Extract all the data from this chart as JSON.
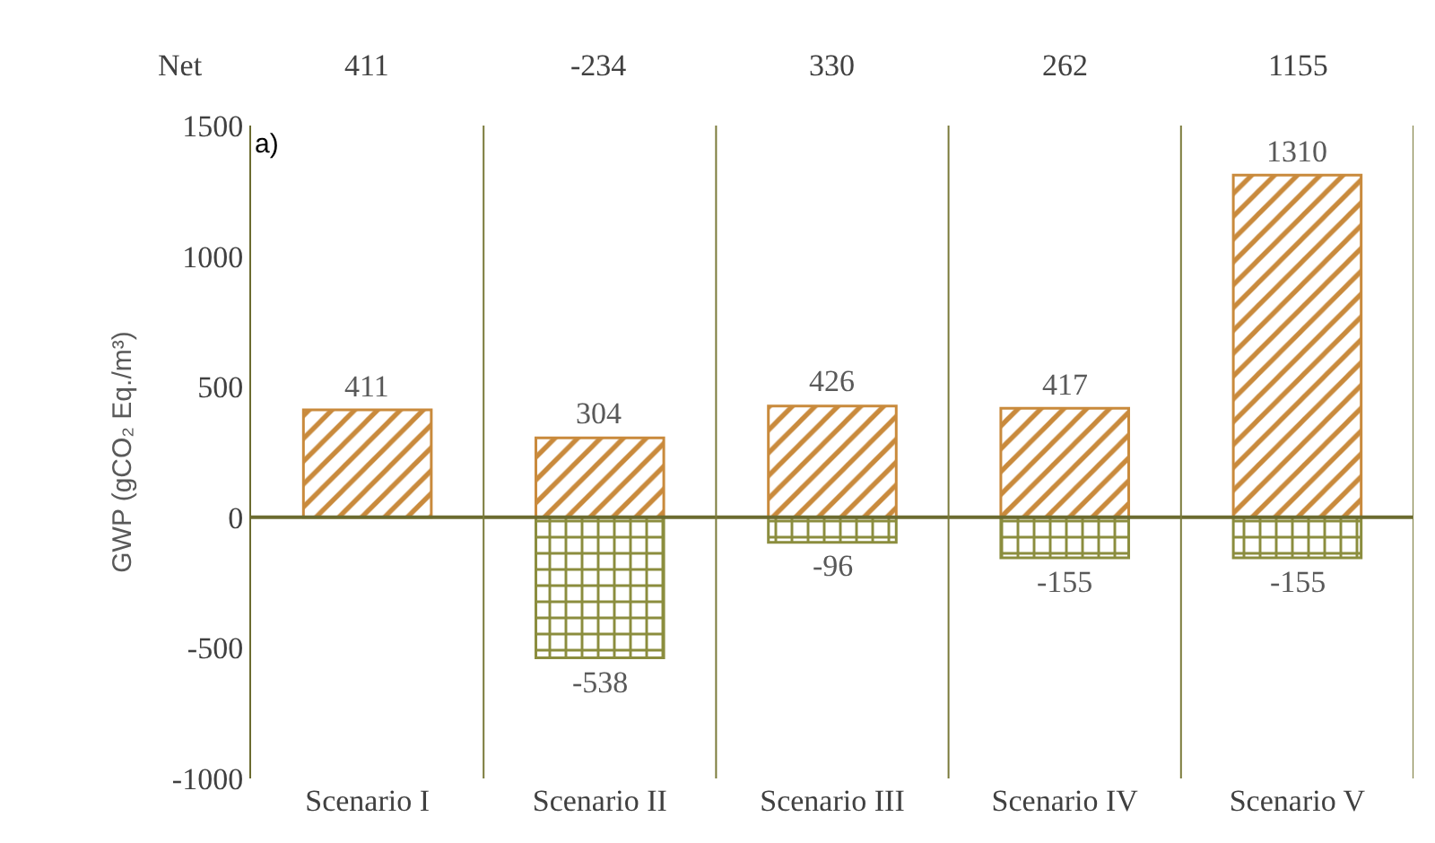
{
  "chart_data": {
    "type": "bar",
    "stacked": true,
    "ylabel": "GWP (gCO₂ Eq./m³)",
    "categories": [
      "Scenario I",
      "Scenario II",
      "Scenario III",
      "Scenario IV",
      "Scenario V"
    ],
    "series": [
      {
        "color": "#c98a3c",
        "values": [
          411,
          304,
          426,
          417,
          1310
        ]
      },
      {
        "color": "#8b8d3e",
        "values": [
          null,
          -538,
          -96,
          -155,
          -155
        ]
      }
    ],
    "ylim": [
      -1000,
      1500
    ],
    "yticks": [
      -1000,
      -500,
      0,
      500,
      1000,
      1500
    ],
    "data_labels": true,
    "annotations": [
      "a)",
      "Net",
      "411",
      "-234",
      "330",
      "262",
      "1155"
    ],
    "ref_lines": [
      {
        "axis": "y",
        "value": 0,
        "color": "#6b6b30"
      }
    ],
    "grid": "x"
  }
}
